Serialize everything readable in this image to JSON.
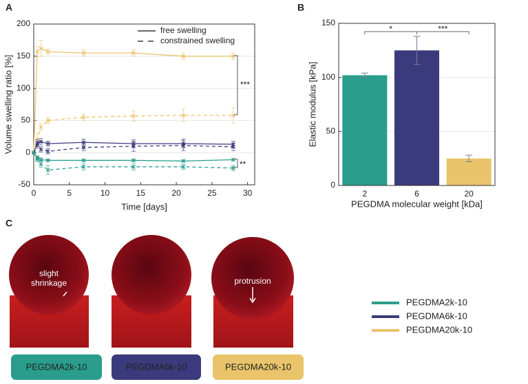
{
  "panels": [
    "A",
    "B",
    "C"
  ],
  "chart_data": [
    {
      "type": "line",
      "xlabel": "Time [days]",
      "ylabel": "Volume swelling ratio [%]",
      "x": [
        0,
        0.5,
        1,
        2,
        7,
        14,
        21,
        28
      ],
      "xlim": [
        0,
        31
      ],
      "ylim": [
        -50,
        200
      ],
      "xticks": [
        0,
        5,
        10,
        15,
        20,
        25,
        30
      ],
      "yticks": [
        -50,
        0,
        50,
        100,
        150,
        200
      ],
      "grid": true,
      "legend": [
        {
          "label": "free swelling",
          "dash": "solid"
        },
        {
          "label": "constrained swelling",
          "dash": "dashed"
        }
      ],
      "series": [
        {
          "color": "#e9c46a",
          "dash": "solid",
          "values": [
            0,
            157,
            162,
            157,
            155,
            155,
            150,
            150
          ],
          "errors": [
            0,
            8,
            12,
            4,
            5,
            5,
            5,
            5
          ]
        },
        {
          "color": "#e9c46a",
          "dash": "dashed",
          "values": [
            0,
            20,
            40,
            50,
            55,
            57,
            58,
            58
          ],
          "errors": [
            0,
            10,
            6,
            5,
            5,
            8,
            10,
            12
          ]
        },
        {
          "color": "#3b3a7c",
          "dash": "solid",
          "values": [
            0,
            15,
            17,
            14,
            16,
            14,
            14,
            13
          ],
          "errors": [
            0,
            5,
            5,
            4,
            5,
            6,
            7,
            5
          ]
        },
        {
          "color": "#3b3a7c",
          "dash": "dashed",
          "values": [
            0,
            12,
            5,
            2,
            8,
            10,
            11,
            9
          ],
          "errors": [
            0,
            5,
            4,
            4,
            5,
            8,
            8,
            6
          ]
        },
        {
          "color": "#2a9d8c",
          "dash": "solid",
          "values": [
            0,
            -8,
            -11,
            -12,
            -12,
            -12,
            -13,
            -11
          ],
          "errors": [
            0,
            3,
            3,
            2,
            2,
            2,
            2,
            2
          ]
        },
        {
          "color": "#2a9d8c",
          "dash": "dashed",
          "values": [
            0,
            -10,
            -18,
            -27,
            -22,
            -22,
            -22,
            -24
          ],
          "errors": [
            0,
            4,
            5,
            7,
            5,
            5,
            4,
            4
          ]
        }
      ],
      "annotations": [
        "***",
        "**"
      ]
    },
    {
      "type": "bar",
      "xlabel": "PEGDMA molecular weight [kDa]",
      "ylabel": "Elastic modulus [kPa]",
      "categories": [
        "2",
        "6",
        "20"
      ],
      "values": [
        102,
        125,
        25
      ],
      "errors": [
        2,
        13,
        3
      ],
      "colors": [
        "#2a9d8c",
        "#3b3a7c",
        "#e9c46a"
      ],
      "ylim": [
        0,
        150
      ],
      "yticks": [
        0,
        50,
        100,
        150
      ],
      "grid": true,
      "annotations": [
        "*",
        "***"
      ]
    }
  ],
  "panel_c": {
    "annotations": [
      "slight shrinkage",
      "protrusion"
    ],
    "samples": [
      {
        "label": "PEGDMA2k-10",
        "color": "#2a9d8c"
      },
      {
        "label": "PEGDMA6k-10",
        "color": "#3b3a7c"
      },
      {
        "label": "PEGDMA20k-10",
        "color": "#e9c46a"
      }
    ]
  }
}
